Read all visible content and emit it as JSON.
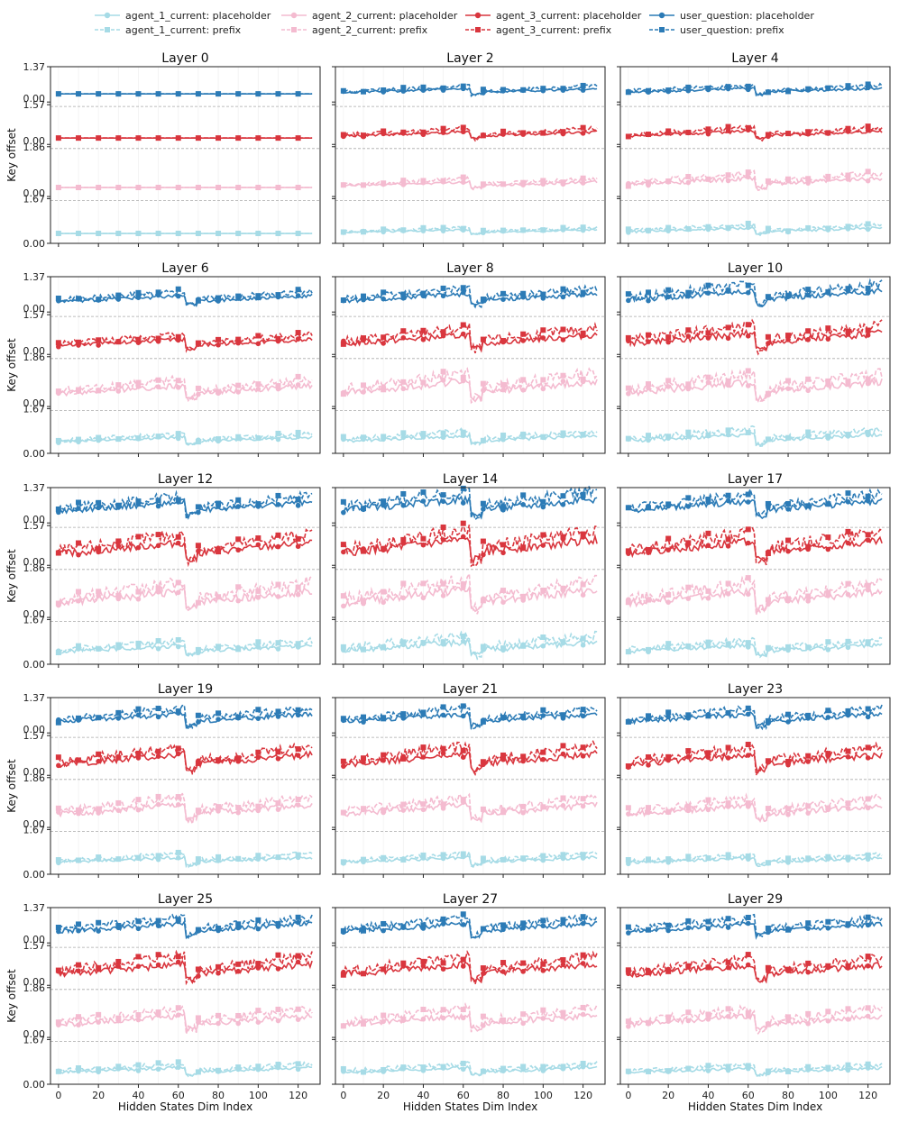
{
  "chart_data": {
    "type": "line",
    "ylabel": "Key offset",
    "xlabel": "Hidden States Dim Index",
    "xlim": [
      -4,
      131
    ],
    "xticks": [
      0,
      20,
      40,
      60,
      80,
      100,
      120
    ],
    "band_labels": [
      {
        "top": "1.37",
        "bottom": "0.00"
      },
      {
        "top": "1.57",
        "bottom": "0.00"
      },
      {
        "top": "1.86",
        "bottom": "0.00"
      },
      {
        "top": "1.67",
        "bottom": "0.00"
      }
    ],
    "legend": [
      {
        "name": "agent_1_current: placeholder",
        "color": "#a6dbe6",
        "dash": false,
        "marker": "circle"
      },
      {
        "name": "agent_2_current: placeholder",
        "color": "#f4bbd0",
        "dash": false,
        "marker": "circle"
      },
      {
        "name": "agent_3_current: placeholder",
        "color": "#d9363e",
        "dash": false,
        "marker": "circle"
      },
      {
        "name": "user_question: placeholder",
        "color": "#2c7bb6",
        "dash": false,
        "marker": "circle"
      },
      {
        "name": "agent_1_current: prefix",
        "color": "#a6dbe6",
        "dash": true,
        "marker": "square"
      },
      {
        "name": "agent_2_current: prefix",
        "color": "#f4bbd0",
        "dash": true,
        "marker": "square"
      },
      {
        "name": "agent_3_current: prefix",
        "color": "#d9363e",
        "dash": true,
        "marker": "square"
      },
      {
        "name": "user_question: prefix",
        "color": "#2c7bb6",
        "dash": true,
        "marker": "square"
      }
    ],
    "series_order_bottom_to_top": [
      "agent_1_current",
      "agent_2_current",
      "agent_3_current",
      "user_question"
    ],
    "panels": [
      {
        "title": "Layer 0",
        "amplitude": [
          0.0,
          0.0,
          0.0,
          0.0
        ]
      },
      {
        "title": "Layer 2",
        "amplitude": [
          0.12,
          0.18,
          0.2,
          0.16
        ]
      },
      {
        "title": "Layer 4",
        "amplitude": [
          0.18,
          0.3,
          0.22,
          0.18
        ]
      },
      {
        "title": "Layer 6",
        "amplitude": [
          0.2,
          0.38,
          0.28,
          0.26
        ]
      },
      {
        "title": "Layer 8",
        "amplitude": [
          0.26,
          0.52,
          0.42,
          0.32
        ]
      },
      {
        "title": "Layer 10",
        "amplitude": [
          0.3,
          0.5,
          0.48,
          0.42
        ]
      },
      {
        "title": "Layer 12",
        "amplitude": [
          0.28,
          0.55,
          0.52,
          0.4
        ]
      },
      {
        "title": "Layer 14",
        "amplitude": [
          0.4,
          0.6,
          0.62,
          0.5
        ]
      },
      {
        "title": "Layer 17",
        "amplitude": [
          0.3,
          0.55,
          0.58,
          0.44
        ]
      },
      {
        "title": "Layer 19",
        "amplitude": [
          0.22,
          0.44,
          0.46,
          0.34
        ]
      },
      {
        "title": "Layer 21",
        "amplitude": [
          0.22,
          0.44,
          0.48,
          0.34
        ]
      },
      {
        "title": "Layer 23",
        "amplitude": [
          0.2,
          0.42,
          0.46,
          0.34
        ]
      },
      {
        "title": "Layer 25",
        "amplitude": [
          0.22,
          0.4,
          0.48,
          0.36
        ]
      },
      {
        "title": "Layer 27",
        "amplitude": [
          0.22,
          0.42,
          0.48,
          0.36
        ]
      },
      {
        "title": "Layer 29",
        "amplitude": [
          0.2,
          0.4,
          0.44,
          0.34
        ]
      }
    ]
  }
}
